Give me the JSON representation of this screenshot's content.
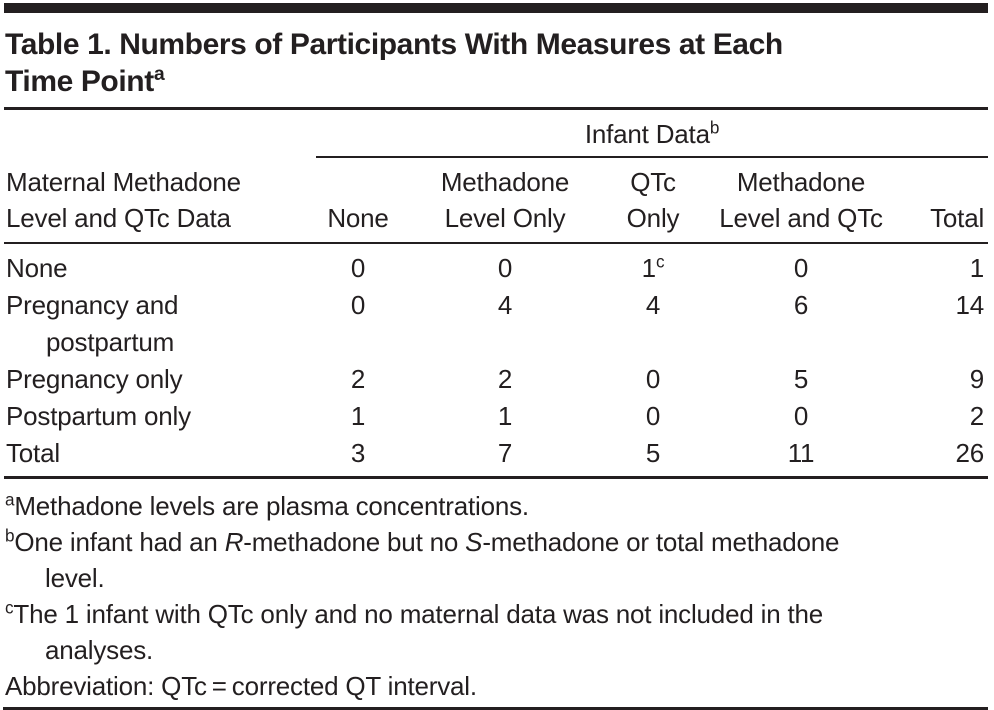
{
  "title": {
    "text": "Table 1. Numbers of Participants With Measures at Each\nTime Point",
    "sup": "a"
  },
  "table": {
    "stub_header": "Maternal Methadone\nLevel and QTc Data",
    "spanner": {
      "text": "Infant Data",
      "sup": "b"
    },
    "columns": [
      "None",
      "Methadone\nLevel Only",
      "QTc\nOnly",
      "Methadone\nLevel and QTc",
      "Total"
    ],
    "rows": [
      {
        "label": "None",
        "cells": [
          {
            "v": "0"
          },
          {
            "v": "0"
          },
          {
            "v": "1",
            "sup": "c"
          },
          {
            "v": "0"
          },
          {
            "v": "1"
          }
        ]
      },
      {
        "label": "Pregnancy and\npostpartum",
        "cells": [
          {
            "v": "0"
          },
          {
            "v": "4"
          },
          {
            "v": "4"
          },
          {
            "v": "6"
          },
          {
            "v": "14"
          }
        ]
      },
      {
        "label": "Pregnancy only",
        "cells": [
          {
            "v": "2"
          },
          {
            "v": "2"
          },
          {
            "v": "0"
          },
          {
            "v": "5"
          },
          {
            "v": "9"
          }
        ]
      },
      {
        "label": "Postpartum only",
        "cells": [
          {
            "v": "1"
          },
          {
            "v": "1"
          },
          {
            "v": "0"
          },
          {
            "v": "0"
          },
          {
            "v": "2"
          }
        ]
      },
      {
        "label": "Total",
        "cells": [
          {
            "v": "3"
          },
          {
            "v": "7"
          },
          {
            "v": "5"
          },
          {
            "v": "11"
          },
          {
            "v": "26"
          }
        ]
      }
    ]
  },
  "footnotes": [
    {
      "sup": "a",
      "segments": [
        {
          "text": "Methadone levels are plasma concentrations."
        }
      ]
    },
    {
      "sup": "b",
      "segments": [
        {
          "text": "One infant had an "
        },
        {
          "text": "R",
          "italic": true
        },
        {
          "text": "-methadone but no "
        },
        {
          "text": "S",
          "italic": true
        },
        {
          "text": "-methadone or total methadone\nlevel."
        }
      ]
    },
    {
      "sup": "c",
      "segments": [
        {
          "text": "The 1 infant with QTc only and no maternal data was not included in the\nanalyses."
        }
      ]
    },
    {
      "segments": [
        {
          "text": "Abbreviation: QTc = corrected QT interval."
        }
      ]
    }
  ],
  "colors": {
    "text": "#231f20",
    "rule": "#231f20"
  }
}
